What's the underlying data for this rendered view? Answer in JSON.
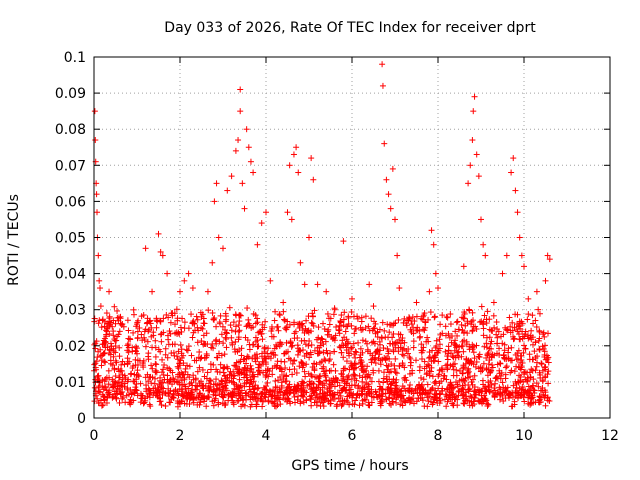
{
  "chart_data": {
    "type": "scatter",
    "title": "Day 033 of 2026, Rate Of TEC Index for receiver dprt",
    "xlabel": "GPS time / hours",
    "ylabel": "ROTI / TECUs",
    "xlim": [
      0,
      12
    ],
    "ylim": [
      0,
      0.1
    ],
    "xticks": [
      "0",
      "2",
      "4",
      "6",
      "8",
      "10",
      "12"
    ],
    "yticks": [
      "0",
      "0.01",
      "0.02",
      "0.03",
      "0.04",
      "0.05",
      "0.06",
      "0.07",
      "0.08",
      "0.09",
      "0.1"
    ],
    "grid": true,
    "marker": "+",
    "color": "#ff0000",
    "series": [
      {
        "name": "ROTI",
        "points": [
          [
            0.02,
            0.085
          ],
          [
            0.03,
            0.077
          ],
          [
            0.04,
            0.071
          ],
          [
            0.05,
            0.065
          ],
          [
            0.06,
            0.062
          ],
          [
            0.07,
            0.057
          ],
          [
            0.08,
            0.05
          ],
          [
            0.1,
            0.045
          ],
          [
            0.12,
            0.038
          ],
          [
            0.14,
            0.036
          ],
          [
            0.16,
            0.031
          ],
          [
            0.2,
            0.027
          ],
          [
            0.3,
            0.024
          ],
          [
            0.35,
            0.035
          ],
          [
            0.45,
            0.027
          ],
          [
            0.6,
            0.024
          ],
          [
            0.8,
            0.022
          ],
          [
            1.0,
            0.026
          ],
          [
            1.2,
            0.047
          ],
          [
            1.35,
            0.035
          ],
          [
            1.5,
            0.051
          ],
          [
            1.55,
            0.046
          ],
          [
            1.6,
            0.045
          ],
          [
            1.7,
            0.04
          ],
          [
            1.8,
            0.029
          ],
          [
            2.0,
            0.035
          ],
          [
            2.1,
            0.038
          ],
          [
            2.2,
            0.04
          ],
          [
            2.3,
            0.036
          ],
          [
            2.5,
            0.028
          ],
          [
            2.65,
            0.035
          ],
          [
            2.75,
            0.043
          ],
          [
            2.8,
            0.06
          ],
          [
            2.85,
            0.065
          ],
          [
            2.9,
            0.05
          ],
          [
            3.0,
            0.047
          ],
          [
            3.1,
            0.063
          ],
          [
            3.2,
            0.067
          ],
          [
            3.3,
            0.074
          ],
          [
            3.35,
            0.077
          ],
          [
            3.4,
            0.085
          ],
          [
            3.4,
            0.091
          ],
          [
            3.45,
            0.065
          ],
          [
            3.5,
            0.058
          ],
          [
            3.55,
            0.08
          ],
          [
            3.6,
            0.075
          ],
          [
            3.65,
            0.071
          ],
          [
            3.7,
            0.068
          ],
          [
            3.8,
            0.048
          ],
          [
            3.9,
            0.054
          ],
          [
            4.0,
            0.057
          ],
          [
            4.1,
            0.038
          ],
          [
            4.2,
            0.027
          ],
          [
            4.4,
            0.032
          ],
          [
            4.5,
            0.057
          ],
          [
            4.55,
            0.07
          ],
          [
            4.6,
            0.055
          ],
          [
            4.65,
            0.073
          ],
          [
            4.7,
            0.075
          ],
          [
            4.75,
            0.068
          ],
          [
            4.8,
            0.043
          ],
          [
            4.9,
            0.037
          ],
          [
            5.0,
            0.05
          ],
          [
            5.05,
            0.072
          ],
          [
            5.1,
            0.066
          ],
          [
            5.2,
            0.037
          ],
          [
            5.4,
            0.035
          ],
          [
            5.6,
            0.03
          ],
          [
            5.8,
            0.049
          ],
          [
            6.0,
            0.033
          ],
          [
            6.2,
            0.025
          ],
          [
            6.4,
            0.037
          ],
          [
            6.5,
            0.031
          ],
          [
            6.7,
            0.098
          ],
          [
            6.72,
            0.092
          ],
          [
            6.75,
            0.076
          ],
          [
            6.8,
            0.066
          ],
          [
            6.85,
            0.062
          ],
          [
            6.9,
            0.058
          ],
          [
            6.95,
            0.069
          ],
          [
            7.0,
            0.055
          ],
          [
            7.05,
            0.045
          ],
          [
            7.1,
            0.036
          ],
          [
            7.3,
            0.027
          ],
          [
            7.5,
            0.032
          ],
          [
            7.7,
            0.025
          ],
          [
            7.8,
            0.035
          ],
          [
            7.85,
            0.052
          ],
          [
            7.9,
            0.048
          ],
          [
            7.95,
            0.04
          ],
          [
            8.0,
            0.036
          ],
          [
            8.2,
            0.028
          ],
          [
            8.4,
            0.024
          ],
          [
            8.6,
            0.042
          ],
          [
            8.7,
            0.065
          ],
          [
            8.75,
            0.07
          ],
          [
            8.8,
            0.077
          ],
          [
            8.82,
            0.085
          ],
          [
            8.85,
            0.089
          ],
          [
            8.9,
            0.073
          ],
          [
            8.95,
            0.067
          ],
          [
            9.0,
            0.055
          ],
          [
            9.05,
            0.048
          ],
          [
            9.1,
            0.045
          ],
          [
            9.3,
            0.032
          ],
          [
            9.5,
            0.04
          ],
          [
            9.6,
            0.045
          ],
          [
            9.7,
            0.068
          ],
          [
            9.75,
            0.072
          ],
          [
            9.8,
            0.063
          ],
          [
            9.85,
            0.057
          ],
          [
            9.9,
            0.05
          ],
          [
            9.95,
            0.045
          ],
          [
            10.0,
            0.042
          ],
          [
            10.1,
            0.033
          ],
          [
            10.3,
            0.035
          ],
          [
            10.5,
            0.038
          ],
          [
            10.55,
            0.045
          ],
          [
            10.6,
            0.044
          ]
        ]
      }
    ],
    "background_band": {
      "note": "Dense scatter between 0.002 and ~0.03 ROTI from 0 to 10.6 h",
      "x_range": [
        0,
        10.6
      ],
      "y_range": [
        0.002,
        0.03
      ]
    }
  }
}
